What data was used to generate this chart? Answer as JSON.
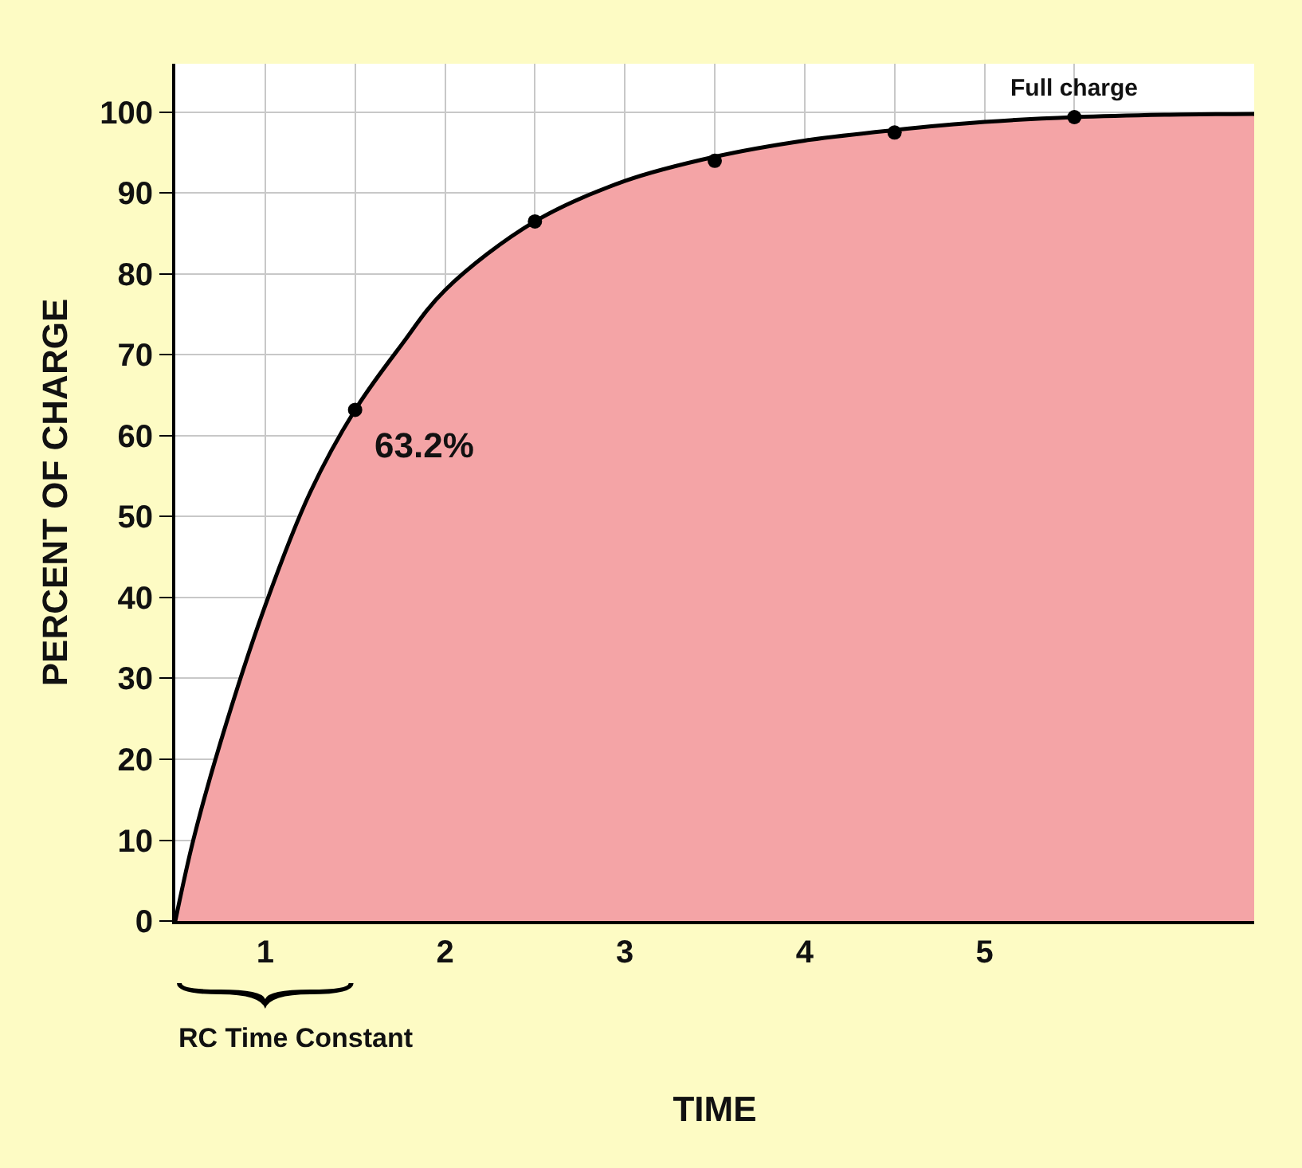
{
  "chart_data": {
    "type": "area",
    "xlabel": "TIME",
    "ylabel": "PERCENT OF CHARGE",
    "xlim": [
      0,
      6
    ],
    "ylim": [
      0,
      106
    ],
    "xticks": [
      {
        "value": 0,
        "label": null
      },
      {
        "value": 0.5,
        "label": "1"
      },
      {
        "value": 1,
        "label": null
      },
      {
        "value": 1.5,
        "label": "2"
      },
      {
        "value": 2,
        "label": null
      },
      {
        "value": 2.5,
        "label": "3"
      },
      {
        "value": 3,
        "label": null
      },
      {
        "value": 3.5,
        "label": "4"
      },
      {
        "value": 4,
        "label": null
      },
      {
        "value": 4.5,
        "label": "5"
      },
      {
        "value": 5,
        "label": null
      },
      {
        "value": 6,
        "label": null
      }
    ],
    "yticks": [
      0,
      10,
      20,
      30,
      40,
      50,
      60,
      70,
      80,
      90,
      100
    ],
    "grid": true,
    "marker": "circle",
    "series": [
      {
        "color": "#f4a4a6",
        "marker": "none",
        "x": [
          0,
          0.1,
          0.25,
          0.5,
          0.75,
          1,
          1.25,
          1.5,
          2,
          2.5,
          3,
          3.5,
          4,
          4.5,
          5,
          5.5,
          6
        ],
        "values": [
          0,
          10,
          22,
          39,
          53,
          63.2,
          71,
          78,
          86.5,
          91.5,
          94.5,
          96.5,
          97.8,
          98.8,
          99.4,
          99.7,
          99.8
        ]
      },
      {
        "type": "scatter",
        "color": "#000000",
        "x": [
          1,
          2,
          3,
          4,
          5
        ],
        "values": [
          63.2,
          86.5,
          94,
          97.5,
          99.4
        ]
      }
    ],
    "annotations": [
      {
        "text": "63.2%",
        "x": 1,
        "y": 63.2
      },
      {
        "text": "Full charge",
        "x": 5,
        "y": 99.4
      },
      "RC Time Constant"
    ]
  }
}
